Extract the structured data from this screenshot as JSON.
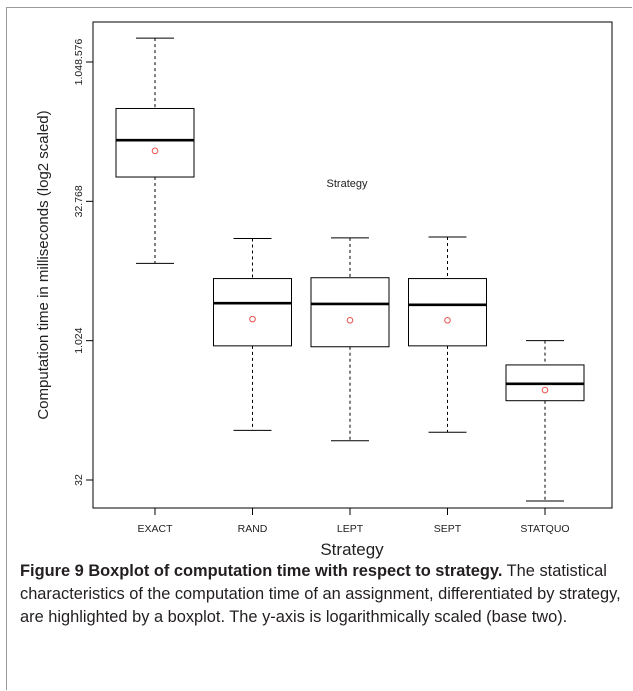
{
  "chart_data": {
    "type": "boxplot",
    "title": "",
    "annotation": "Strategy",
    "xlabel": "Strategy",
    "ylabel": "Computation time in milliseconds (log2 scaled)",
    "y_scale": "log2",
    "ylim": [
      24,
      2600000
    ],
    "y_ticks": [
      32,
      1024,
      32768,
      1048576
    ],
    "y_tick_labels": [
      "32",
      "1.024",
      "32.768",
      "1.048.576"
    ],
    "categories": [
      "EXACT",
      "RAND",
      "LEPT",
      "SEPT",
      "STATQUO"
    ],
    "boxes": [
      {
        "name": "EXACT",
        "whisker_low": 7000,
        "q1": 60000,
        "median": 150000,
        "q3": 330000,
        "whisker_high": 1900000,
        "mean": 115000
      },
      {
        "name": "RAND",
        "whisker_low": 110,
        "q1": 900,
        "median": 2600,
        "q3": 4800,
        "whisker_high": 13000,
        "mean": 1750
      },
      {
        "name": "LEPT",
        "whisker_low": 85,
        "q1": 880,
        "median": 2550,
        "q3": 4900,
        "whisker_high": 13200,
        "mean": 1700
      },
      {
        "name": "SEPT",
        "whisker_low": 105,
        "q1": 900,
        "median": 2500,
        "q3": 4800,
        "whisker_high": 13500,
        "mean": 1700
      },
      {
        "name": "STATQUO",
        "whisker_low": 19,
        "q1": 230,
        "median": 350,
        "q3": 560,
        "whisker_high": 1024,
        "mean": 300
      }
    ],
    "colors": {
      "box": "#000000",
      "median": "#000000",
      "mean": "#e8524f",
      "whisker": "#000000"
    },
    "grid": false,
    "legend": "none"
  },
  "caption": {
    "label": "Figure 9",
    "title": "Boxplot of computation time with respect to strategy.",
    "text": "The statistical characteristics of the computation time of an assignment, differentiated by strategy, are highlighted by a boxplot. The y-axis is logarithmically scaled (base two)."
  }
}
